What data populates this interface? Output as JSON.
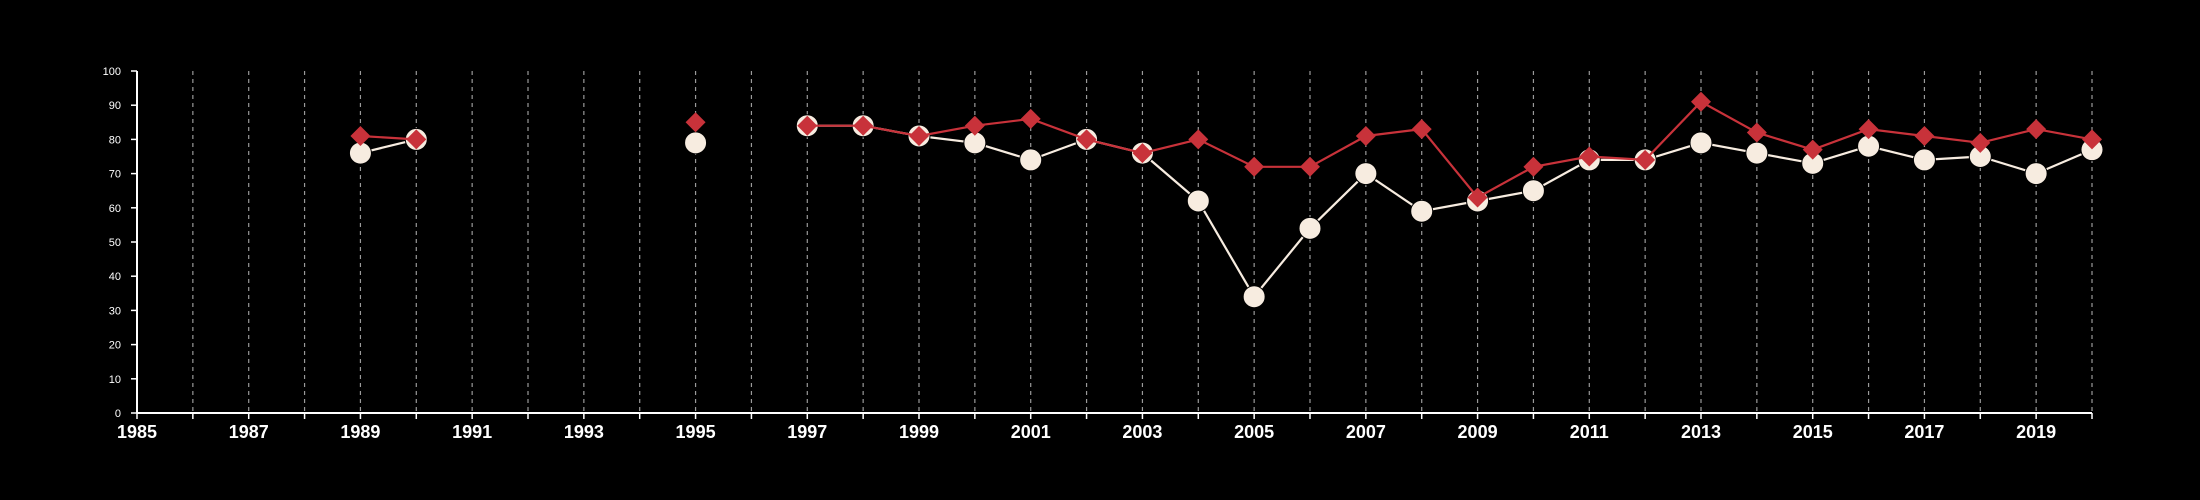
{
  "chart_data": {
    "type": "line",
    "title": "",
    "xlabel": "",
    "ylabel": "",
    "xlim": [
      1985,
      2020
    ],
    "ylim": [
      0,
      100
    ],
    "x_tick_labels": [
      "1985",
      "1987",
      "1989",
      "1991",
      "1993",
      "1995",
      "1997",
      "1999",
      "2001",
      "2003",
      "2005",
      "2007",
      "2009",
      "2011",
      "2013",
      "2015",
      "2017",
      "2019"
    ],
    "y_tick_labels": [
      "0",
      "10",
      "20",
      "30",
      "40",
      "50",
      "60",
      "70",
      "80",
      "90",
      "100"
    ],
    "vertical_grid": "dashed, every year",
    "series": [
      {
        "marker": "diamond",
        "color": "#c8323a",
        "points": [
          [
            1989,
            81
          ],
          [
            1990,
            80
          ],
          [
            1995,
            85
          ],
          [
            1997,
            84
          ],
          [
            1998,
            84
          ],
          [
            1999,
            81
          ],
          [
            2000,
            84
          ],
          [
            2001,
            86
          ],
          [
            2002,
            80
          ],
          [
            2003,
            76
          ],
          [
            2004,
            80
          ],
          [
            2005,
            72
          ],
          [
            2006,
            72
          ],
          [
            2007,
            81
          ],
          [
            2008,
            83
          ],
          [
            2009,
            63
          ],
          [
            2010,
            72
          ],
          [
            2011,
            75
          ],
          [
            2012,
            74
          ],
          [
            2013,
            91
          ],
          [
            2014,
            82
          ],
          [
            2015,
            77
          ],
          [
            2016,
            83
          ],
          [
            2017,
            81
          ],
          [
            2018,
            79
          ],
          [
            2019,
            83
          ],
          [
            2020,
            80
          ]
        ]
      },
      {
        "marker": "circle",
        "color": "#f7ece0",
        "points": [
          [
            1989,
            76
          ],
          [
            1990,
            80
          ],
          [
            1995,
            79
          ],
          [
            1997,
            84
          ],
          [
            1998,
            84
          ],
          [
            1999,
            81
          ],
          [
            2000,
            79
          ],
          [
            2001,
            74
          ],
          [
            2002,
            80
          ],
          [
            2003,
            76
          ],
          [
            2004,
            62
          ],
          [
            2005,
            34
          ],
          [
            2006,
            54
          ],
          [
            2007,
            70
          ],
          [
            2008,
            59
          ],
          [
            2009,
            62
          ],
          [
            2010,
            65
          ],
          [
            2011,
            74
          ],
          [
            2012,
            74
          ],
          [
            2013,
            79
          ],
          [
            2014,
            76
          ],
          [
            2015,
            73
          ],
          [
            2016,
            78
          ],
          [
            2017,
            74
          ],
          [
            2018,
            75
          ],
          [
            2019,
            70
          ],
          [
            2020,
            77
          ]
        ]
      }
    ]
  }
}
